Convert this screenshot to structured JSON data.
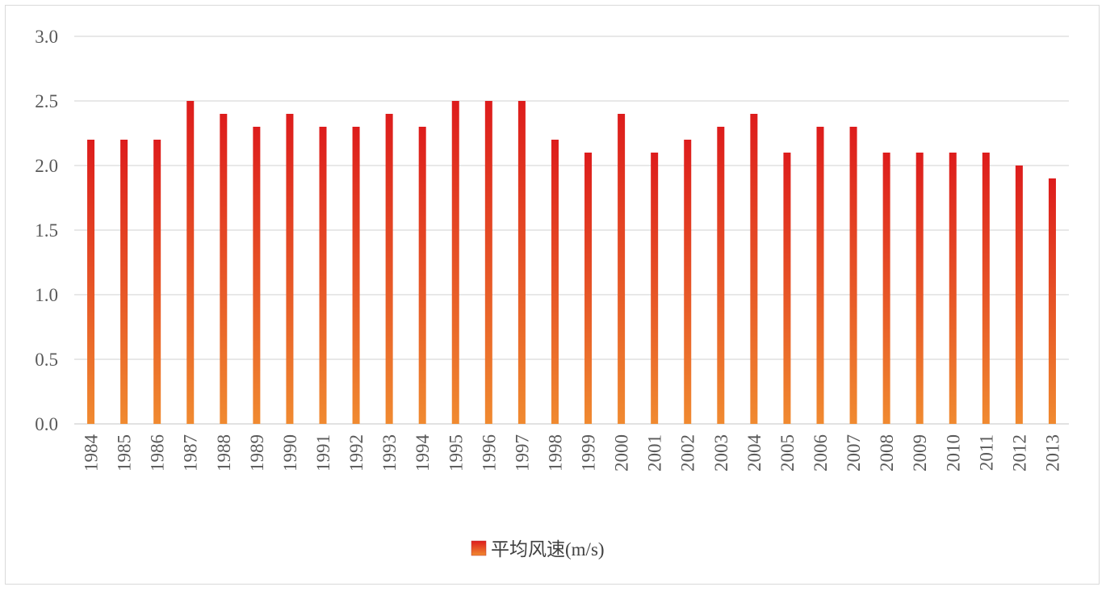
{
  "chart_data": {
    "type": "bar",
    "categories": [
      "1984",
      "1985",
      "1986",
      "1987",
      "1988",
      "1989",
      "1990",
      "1991",
      "1992",
      "1993",
      "1994",
      "1995",
      "1996",
      "1997",
      "1998",
      "1999",
      "2000",
      "2001",
      "2002",
      "2003",
      "2004",
      "2005",
      "2006",
      "2007",
      "2008",
      "2009",
      "2010",
      "2011",
      "2012",
      "2013"
    ],
    "series": [
      {
        "name": "平均风速(m/s)",
        "values": [
          2.2,
          2.2,
          2.2,
          2.5,
          2.4,
          2.3,
          2.4,
          2.3,
          2.3,
          2.4,
          2.3,
          2.5,
          2.5,
          2.5,
          2.2,
          2.1,
          2.4,
          2.1,
          2.2,
          2.3,
          2.4,
          2.1,
          2.3,
          2.3,
          2.1,
          2.1,
          2.1,
          2.1,
          2.0,
          1.9
        ]
      }
    ],
    "yticks": [
      "0.0",
      "0.5",
      "1.0",
      "1.5",
      "2.0",
      "2.5",
      "3.0"
    ],
    "ylim": [
      0,
      3.0
    ],
    "grid": true,
    "legend_position": "bottom",
    "colors": {
      "bar_top": "#dd1c1c",
      "bar_bottom": "#f08a30",
      "grid": "#d9d9d9"
    }
  }
}
